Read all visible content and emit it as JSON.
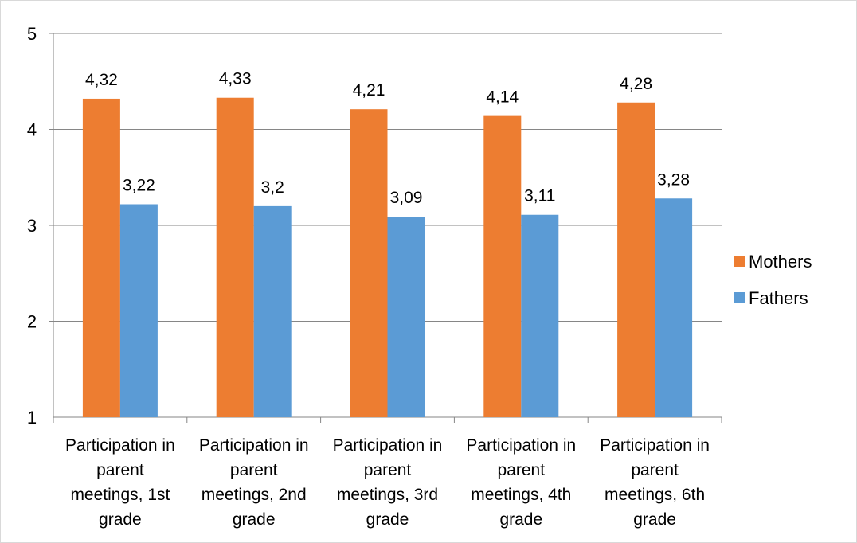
{
  "chart_data": {
    "type": "bar",
    "categories": [
      [
        "Participation in",
        "parent",
        "meetings, 1st",
        "grade"
      ],
      [
        "Participation in",
        "parent",
        "meetings, 2nd",
        "grade"
      ],
      [
        "Participation in",
        "parent",
        "meetings, 3rd",
        "grade"
      ],
      [
        "Participation in",
        "parent",
        "meetings, 4th",
        "grade"
      ],
      [
        "Participation in",
        "parent",
        "meetings, 6th",
        "grade"
      ]
    ],
    "series": [
      {
        "name": "Mothers",
        "color": "#ED7D31",
        "values": [
          4.32,
          4.33,
          4.21,
          4.14,
          4.28
        ],
        "labels": [
          "4,32",
          "4,33",
          "4,21",
          "4,14",
          "4,28"
        ]
      },
      {
        "name": "Fathers",
        "color": "#5B9BD5",
        "values": [
          3.22,
          3.2,
          3.09,
          3.11,
          3.28
        ],
        "labels": [
          "3,22",
          "3,2",
          "3,09",
          "3,11",
          "3,28"
        ]
      }
    ],
    "ylim": [
      1,
      5
    ],
    "yticks": [
      "1",
      "2",
      "3",
      "4",
      "5"
    ],
    "grid": true,
    "grid_color": "#868686",
    "legend_position": "right",
    "title": "",
    "xlabel": "",
    "ylabel": ""
  }
}
